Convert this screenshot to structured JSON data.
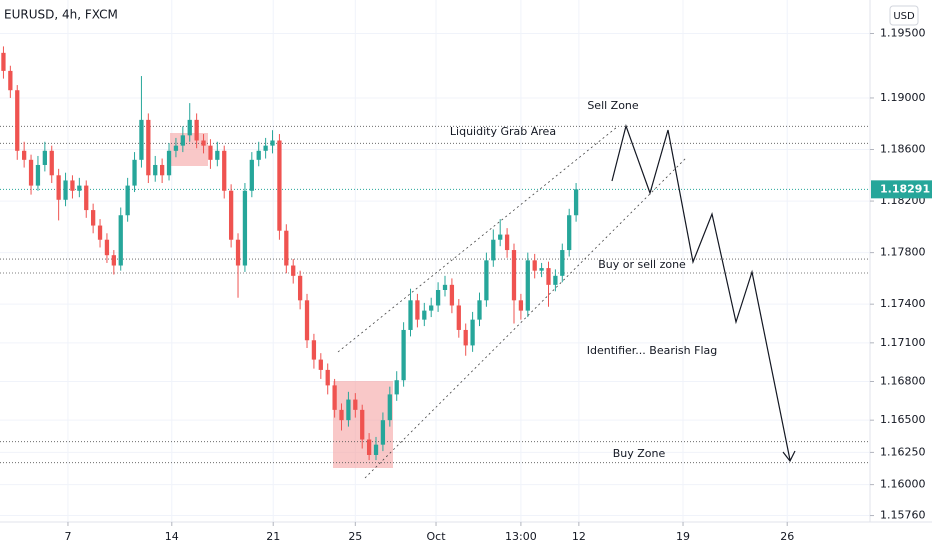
{
  "chart_data": {
    "type": "candlestick",
    "title": "EURUSD, 4h, FXCM",
    "currency": "USD",
    "up_color": "#26a69a",
    "down_color": "#ef5350",
    "grid": true,
    "ylim": [
      1.1571,
      1.1976
    ],
    "yticks": [
      {
        "value": 1.195,
        "label": "1.19500"
      },
      {
        "value": 1.19,
        "label": "1.19000"
      },
      {
        "value": 1.186,
        "label": "1.18600"
      },
      {
        "value": 1.182,
        "label": "1.18200"
      },
      {
        "value": 1.178,
        "label": "1.17800"
      },
      {
        "value": 1.174,
        "label": "1.17400"
      },
      {
        "value": 1.171,
        "label": "1.17100"
      },
      {
        "value": 1.168,
        "label": "1.16800"
      },
      {
        "value": 1.165,
        "label": "1.16500"
      },
      {
        "value": 1.1625,
        "label": "1.16250"
      },
      {
        "value": 1.16,
        "label": "1.16000"
      },
      {
        "value": 1.1576,
        "label": "1.15760"
      }
    ],
    "xlim": [
      -0.5,
      125.6
    ],
    "xticks": [
      {
        "value": 9.35,
        "label": "7"
      },
      {
        "value": 24.4,
        "label": "14"
      },
      {
        "value": 39.1,
        "label": "21"
      },
      {
        "value": 51,
        "label": "25"
      },
      {
        "value": 62.7,
        "label": "Oct"
      },
      {
        "value": 75,
        "label": "13:00"
      },
      {
        "value": 83.4,
        "label": "12"
      },
      {
        "value": 98.5,
        "label": "19"
      },
      {
        "value": 113.6,
        "label": "26"
      }
    ],
    "last_price": 1.18291,
    "last_price_color": "#26a69a",
    "levels": [
      1.1878,
      1.18648,
      1.1775,
      1.17642,
      1.16333,
      1.1617
    ],
    "annotations": [
      "Sell Zone",
      "Liquidity Grab Area",
      "Buy or sell zone",
      "Identifier... Bearish Flag",
      "Buy Zone"
    ],
    "ohlc": [
      [
        1.1935,
        1.194,
        1.1915,
        1.1921
      ],
      [
        1.1921,
        1.1925,
        1.19,
        1.1906
      ],
      [
        1.1906,
        1.191,
        1.1852,
        1.1859
      ],
      [
        1.1859,
        1.1866,
        1.1846,
        1.1852
      ],
      [
        1.1852,
        1.1856,
        1.1825,
        1.1832
      ],
      [
        1.1832,
        1.1855,
        1.1828,
        1.1848
      ],
      [
        1.1848,
        1.1866,
        1.1843,
        1.1859
      ],
      [
        1.1859,
        1.1863,
        1.1834,
        1.184
      ],
      [
        1.184,
        1.1845,
        1.1805,
        1.1821
      ],
      [
        1.1821,
        1.1842,
        1.1816,
        1.1836
      ],
      [
        1.1836,
        1.184,
        1.1822,
        1.1828
      ],
      [
        1.1828,
        1.1838,
        1.1823,
        1.1832
      ],
      [
        1.1832,
        1.1836,
        1.1807,
        1.1813
      ],
      [
        1.1813,
        1.1818,
        1.1795,
        1.1801
      ],
      [
        1.1801,
        1.1806,
        1.1784,
        1.179
      ],
      [
        1.179,
        1.1795,
        1.1772,
        1.1778
      ],
      [
        1.1778,
        1.1782,
        1.1763,
        1.177
      ],
      [
        1.177,
        1.1815,
        1.1766,
        1.1809
      ],
      [
        1.1809,
        1.1838,
        1.1804,
        1.1832
      ],
      [
        1.1832,
        1.1858,
        1.1827,
        1.1852
      ],
      [
        1.1852,
        1.1917,
        1.1846,
        1.1883
      ],
      [
        1.1883,
        1.1888,
        1.1834,
        1.184
      ],
      [
        1.184,
        1.1855,
        1.1835,
        1.1848
      ],
      [
        1.1848,
        1.1853,
        1.1834,
        1.184
      ],
      [
        1.184,
        1.1865,
        1.1836,
        1.1859
      ],
      [
        1.1859,
        1.1869,
        1.1854,
        1.1863
      ],
      [
        1.1863,
        1.1878,
        1.1858,
        1.1871
      ],
      [
        1.1871,
        1.1896,
        1.1866,
        1.1883
      ],
      [
        1.1883,
        1.1888,
        1.1861,
        1.1867
      ],
      [
        1.1867,
        1.1872,
        1.1857,
        1.1863
      ],
      [
        1.1863,
        1.1868,
        1.1845,
        1.1852
      ],
      [
        1.1852,
        1.1866,
        1.1847,
        1.1859
      ],
      [
        1.1859,
        1.1863,
        1.1822,
        1.1828
      ],
      [
        1.1828,
        1.1833,
        1.1784,
        1.179
      ],
      [
        1.179,
        1.1795,
        1.1745,
        1.177
      ],
      [
        1.177,
        1.1834,
        1.1765,
        1.1828
      ],
      [
        1.1828,
        1.1858,
        1.1823,
        1.1852
      ],
      [
        1.1852,
        1.1866,
        1.1847,
        1.1859
      ],
      [
        1.1859,
        1.1869,
        1.1853,
        1.1863
      ],
      [
        1.1863,
        1.1875,
        1.1857,
        1.1867
      ],
      [
        1.1867,
        1.1872,
        1.179,
        1.1797
      ],
      [
        1.1797,
        1.1802,
        1.1764,
        1.177
      ],
      [
        1.177,
        1.1775,
        1.1756,
        1.1762
      ],
      [
        1.1762,
        1.1766,
        1.1736,
        1.1743
      ],
      [
        1.1743,
        1.1748,
        1.1706,
        1.1712
      ],
      [
        1.1712,
        1.1717,
        1.169,
        1.1697
      ],
      [
        1.1697,
        1.1702,
        1.1682,
        1.1689
      ],
      [
        1.1689,
        1.1694,
        1.167,
        1.1677
      ],
      [
        1.1677,
        1.1682,
        1.1652,
        1.1658
      ],
      [
        1.1658,
        1.1663,
        1.1642,
        1.165
      ],
      [
        1.165,
        1.1672,
        1.1645,
        1.1666
      ],
      [
        1.1666,
        1.1671,
        1.1652,
        1.1658
      ],
      [
        1.1658,
        1.1662,
        1.1628,
        1.1635
      ],
      [
        1.1635,
        1.164,
        1.1619,
        1.1623
      ],
      [
        1.1623,
        1.1637,
        1.1619,
        1.1631
      ],
      [
        1.1631,
        1.1656,
        1.1626,
        1.165
      ],
      [
        1.165,
        1.1676,
        1.1645,
        1.167
      ],
      [
        1.167,
        1.1688,
        1.1665,
        1.1681
      ],
      [
        1.1681,
        1.1726,
        1.1676,
        1.172
      ],
      [
        1.172,
        1.1752,
        1.1715,
        1.1743
      ],
      [
        1.1743,
        1.1748,
        1.1722,
        1.1728
      ],
      [
        1.1728,
        1.1741,
        1.1723,
        1.1735
      ],
      [
        1.1735,
        1.1745,
        1.173,
        1.1739
      ],
      [
        1.1739,
        1.1757,
        1.1734,
        1.1751
      ],
      [
        1.1751,
        1.1762,
        1.1746,
        1.1755
      ],
      [
        1.1755,
        1.176,
        1.1733,
        1.1739
      ],
      [
        1.1739,
        1.1744,
        1.1714,
        1.172
      ],
      [
        1.172,
        1.1725,
        1.17,
        1.1708
      ],
      [
        1.1708,
        1.1734,
        1.1703,
        1.1728
      ],
      [
        1.1728,
        1.1749,
        1.1723,
        1.1743
      ],
      [
        1.1743,
        1.178,
        1.1738,
        1.1774
      ],
      [
        1.1774,
        1.1798,
        1.1769,
        1.179
      ],
      [
        1.179,
        1.1806,
        1.1785,
        1.1794
      ],
      [
        1.1794,
        1.1799,
        1.1776,
        1.1782
      ],
      [
        1.1782,
        1.1787,
        1.1725,
        1.1743
      ],
      [
        1.1743,
        1.1748,
        1.1728,
        1.1735
      ],
      [
        1.1735,
        1.178,
        1.173,
        1.1774
      ],
      [
        1.1774,
        1.1779,
        1.176,
        1.1766
      ],
      [
        1.1766,
        1.1772,
        1.1761,
        1.1768
      ],
      [
        1.1768,
        1.1773,
        1.1738,
        1.1755
      ],
      [
        1.1755,
        1.1767,
        1.175,
        1.1762
      ],
      [
        1.1762,
        1.1787,
        1.1757,
        1.1782
      ],
      [
        1.1782,
        1.1814,
        1.1777,
        1.1809
      ],
      [
        1.1809,
        1.1834,
        1.1804,
        1.18291
      ]
    ]
  }
}
